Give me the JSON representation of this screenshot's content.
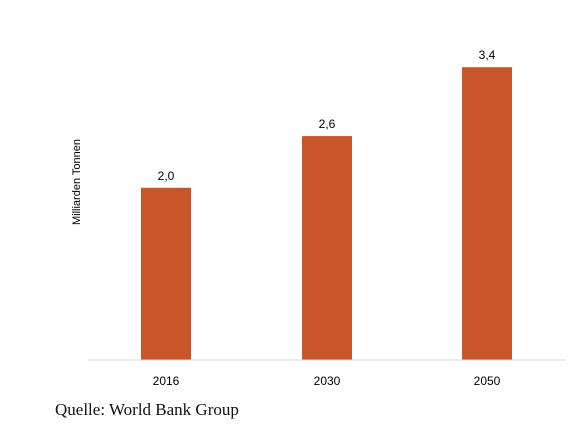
{
  "chart_data": {
    "type": "bar",
    "categories": [
      "2016",
      "2030",
      "2050"
    ],
    "values": [
      2.0,
      2.6,
      3.4
    ],
    "value_labels": [
      "2,0",
      "2,6",
      "3,4"
    ],
    "title": "",
    "xlabel": "",
    "ylabel": "Milliarden Tonnen",
    "ylim": [
      0,
      3.6
    ],
    "grid": false,
    "legend": "none",
    "bar_color": "#c9552a",
    "axis_color": "#d9d9d9"
  },
  "source": "Quelle: World Bank Group"
}
